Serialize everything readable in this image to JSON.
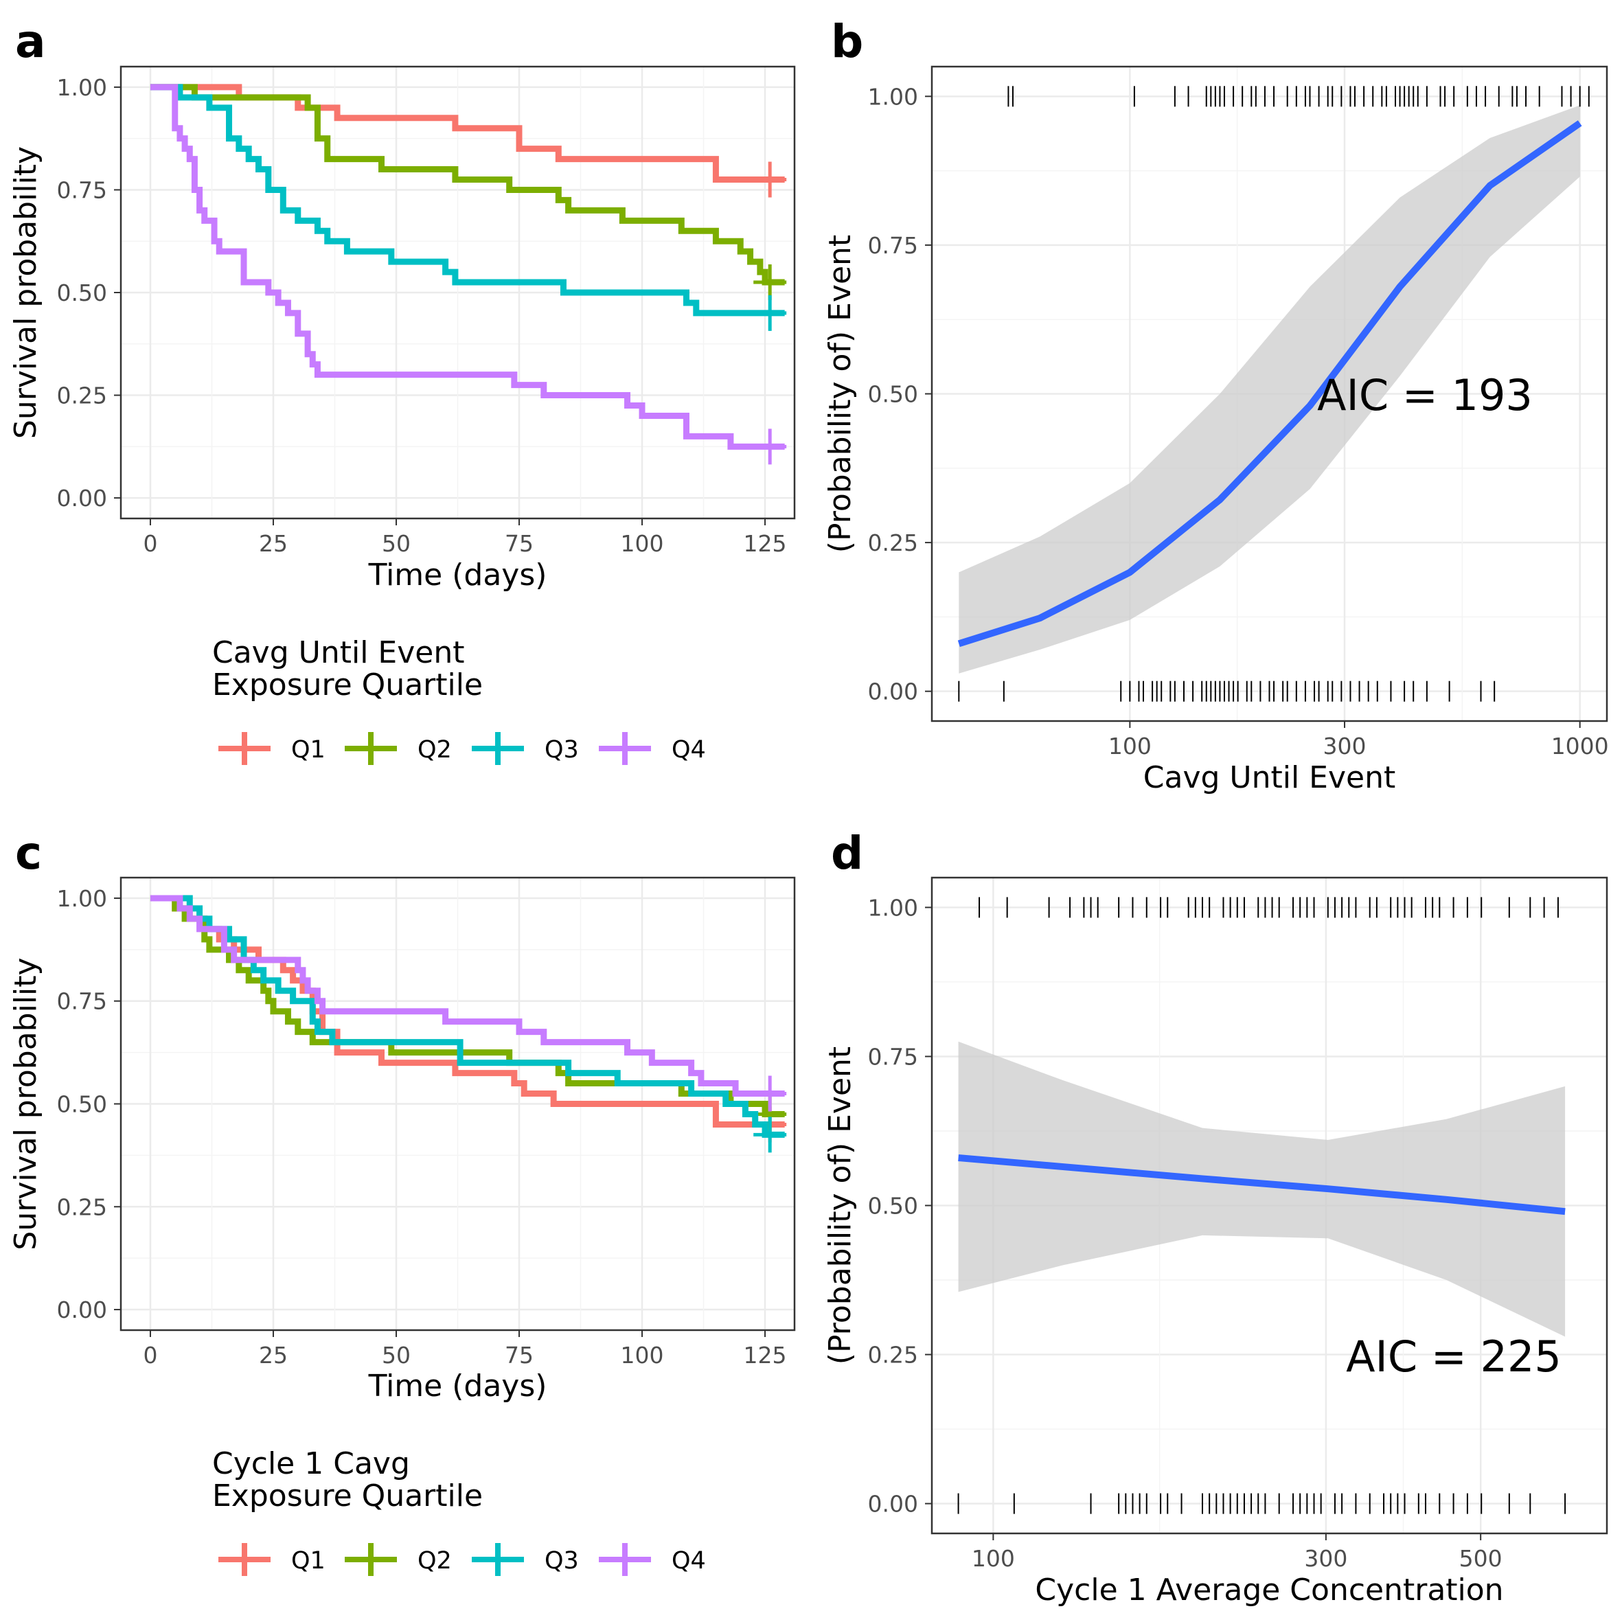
{
  "chart_data": [
    {
      "panel": "a",
      "type": "line",
      "subtype": "kaplan-meier",
      "xlabel": "Time (days)",
      "ylabel": "Survival probability",
      "xlim": [
        -6,
        131
      ],
      "ylim": [
        -0.05,
        1.05
      ],
      "xticks": [
        0,
        25,
        50,
        75,
        100,
        125
      ],
      "yticks": [
        "0.00",
        "0.25",
        "0.50",
        "0.75",
        "1.00"
      ],
      "grid": true,
      "legend": {
        "title_lines": [
          "Cavg Until Event",
          "Exposure Quartile"
        ],
        "placement": "bottom",
        "labels": [
          "Q1",
          "Q2",
          "Q3",
          "Q4"
        ]
      },
      "series": [
        {
          "name": "Q1",
          "color": "#F8766D",
          "censor": [
            126,
            0.775
          ],
          "steps": [
            [
              0,
              1
            ],
            [
              18,
              0.975
            ],
            [
              30,
              0.95
            ],
            [
              38,
              0.925
            ],
            [
              62,
              0.9
            ],
            [
              75,
              0.85
            ],
            [
              83,
              0.825
            ],
            [
              115,
              0.775
            ],
            [
              129,
              0.775
            ]
          ]
        },
        {
          "name": "Q2",
          "color": "#7CAE00",
          "censor": [
            126,
            0.525
          ],
          "steps": [
            [
              0,
              1
            ],
            [
              9,
              0.975
            ],
            [
              14,
              0.975
            ],
            [
              32,
              0.95
            ],
            [
              34,
              0.875
            ],
            [
              36,
              0.825
            ],
            [
              47,
              0.8
            ],
            [
              62,
              0.775
            ],
            [
              73,
              0.75
            ],
            [
              83,
              0.725
            ],
            [
              85,
              0.7
            ],
            [
              96,
              0.675
            ],
            [
              108,
              0.65
            ],
            [
              115,
              0.625
            ],
            [
              120,
              0.6
            ],
            [
              122,
              0.575
            ],
            [
              124,
              0.55
            ],
            [
              125,
              0.525
            ],
            [
              129,
              0.525
            ]
          ]
        },
        {
          "name": "Q3",
          "color": "#00BFC4",
          "censor": [
            126,
            0.45
          ],
          "steps": [
            [
              0,
              1
            ],
            [
              6,
              0.975
            ],
            [
              12,
              0.95
            ],
            [
              16,
              0.875
            ],
            [
              18,
              0.85
            ],
            [
              20,
              0.825
            ],
            [
              22,
              0.8
            ],
            [
              24,
              0.75
            ],
            [
              27,
              0.7
            ],
            [
              30,
              0.675
            ],
            [
              34,
              0.65
            ],
            [
              36,
              0.625
            ],
            [
              40,
              0.6
            ],
            [
              49,
              0.575
            ],
            [
              60,
              0.55
            ],
            [
              62,
              0.525
            ],
            [
              84,
              0.5
            ],
            [
              109,
              0.475
            ],
            [
              111,
              0.45
            ],
            [
              129,
              0.45
            ]
          ]
        },
        {
          "name": "Q4",
          "color": "#C77CFF",
          "censor": [
            126,
            0.125
          ],
          "steps": [
            [
              0,
              1
            ],
            [
              5,
              0.9
            ],
            [
              6,
              0.875
            ],
            [
              7,
              0.85
            ],
            [
              8,
              0.825
            ],
            [
              9,
              0.75
            ],
            [
              10,
              0.7
            ],
            [
              11,
              0.675
            ],
            [
              13,
              0.625
            ],
            [
              14,
              0.6
            ],
            [
              19,
              0.525
            ],
            [
              24,
              0.5
            ],
            [
              26,
              0.475
            ],
            [
              28,
              0.45
            ],
            [
              30,
              0.4
            ],
            [
              32,
              0.35
            ],
            [
              33,
              0.325
            ],
            [
              34,
              0.3
            ],
            [
              74,
              0.275
            ],
            [
              80,
              0.25
            ],
            [
              97,
              0.225
            ],
            [
              100,
              0.2
            ],
            [
              109,
              0.15
            ],
            [
              118,
              0.125
            ],
            [
              129,
              0.125
            ]
          ]
        }
      ]
    },
    {
      "panel": "b",
      "type": "line",
      "subtype": "logistic-regression",
      "xlabel": "Cavg Until Event",
      "ylabel": "(Probability of) Event",
      "xscale": "log10",
      "xlim_log10": [
        1.56,
        3.06
      ],
      "ylim": [
        -0.05,
        1.05
      ],
      "xticks": [
        100,
        300,
        1000
      ],
      "yticks": [
        "0.00",
        "0.25",
        "0.50",
        "0.75",
        "1.00"
      ],
      "grid": true,
      "annotation": "AIC = 193",
      "curve_color": "#3366FF",
      "band_color": "#cccccc",
      "curve": {
        "log10x": [
          1.62,
          1.8,
          2.0,
          2.2,
          2.4,
          2.6,
          2.8,
          3.0
        ],
        "y": [
          0.08,
          0.123,
          0.2,
          0.322,
          0.48,
          0.68,
          0.85,
          0.955
        ]
      },
      "band_upper": [
        0.2,
        0.26,
        0.35,
        0.5,
        0.68,
        0.83,
        0.93,
        0.985
      ],
      "band_lower": [
        0.03,
        0.07,
        0.12,
        0.21,
        0.34,
        0.53,
        0.73,
        0.865
      ],
      "rug_events": [
        1.73,
        1.74,
        2.01,
        2.1,
        2.13,
        2.17,
        2.18,
        2.19,
        2.2,
        2.21,
        2.23,
        2.25,
        2.27,
        2.28,
        2.3,
        2.32,
        2.35,
        2.37,
        2.39,
        2.4,
        2.42,
        2.44,
        2.45,
        2.47,
        2.49,
        2.5,
        2.52,
        2.54,
        2.56,
        2.57,
        2.59,
        2.61,
        2.63,
        2.64,
        2.66,
        2.69,
        2.7,
        2.72,
        2.75,
        2.77,
        2.79,
        2.82,
        2.85,
        2.86,
        2.88,
        2.91,
        2.96,
        2.98,
        3.0,
        3.02,
        2.6,
        2.62
      ],
      "rug_nonevents": [
        1.62,
        1.72,
        1.98,
        2.0,
        2.02,
        2.03,
        2.05,
        2.06,
        2.07,
        2.09,
        2.1,
        2.12,
        2.14,
        2.16,
        2.17,
        2.18,
        2.19,
        2.2,
        2.21,
        2.22,
        2.23,
        2.24,
        2.26,
        2.27,
        2.29,
        2.31,
        2.32,
        2.34,
        2.35,
        2.37,
        2.39,
        2.41,
        2.42,
        2.44,
        2.45,
        2.47,
        2.49,
        2.51,
        2.53,
        2.55,
        2.58,
        2.61,
        2.63,
        2.66,
        2.71,
        2.78,
        2.81
      ]
    },
    {
      "panel": "c",
      "type": "line",
      "subtype": "kaplan-meier",
      "xlabel": "Time (days)",
      "ylabel": "Survival probability",
      "xlim": [
        -6,
        131
      ],
      "ylim": [
        -0.05,
        1.05
      ],
      "xticks": [
        0,
        25,
        50,
        75,
        100,
        125
      ],
      "yticks": [
        "0.00",
        "0.25",
        "0.50",
        "0.75",
        "1.00"
      ],
      "grid": true,
      "legend": {
        "title_lines": [
          "Cycle 1 Cavg",
          "Exposure Quartile"
        ],
        "placement": "bottom",
        "labels": [
          "Q1",
          "Q2",
          "Q3",
          "Q4"
        ]
      },
      "series": [
        {
          "name": "Q1",
          "color": "#F8766D",
          "censor": [
            126,
            0.45
          ],
          "steps": [
            [
              0,
              1
            ],
            [
              5,
              0.975
            ],
            [
              8,
              0.95
            ],
            [
              11,
              0.925
            ],
            [
              14,
              0.9
            ],
            [
              17,
              0.875
            ],
            [
              22,
              0.85
            ],
            [
              27,
              0.825
            ],
            [
              29,
              0.8
            ],
            [
              31,
              0.775
            ],
            [
              33,
              0.725
            ],
            [
              35,
              0.675
            ],
            [
              38,
              0.625
            ],
            [
              47,
              0.6
            ],
            [
              62,
              0.575
            ],
            [
              74,
              0.55
            ],
            [
              76,
              0.525
            ],
            [
              82,
              0.5
            ],
            [
              115,
              0.45
            ],
            [
              129,
              0.45
            ]
          ]
        },
        {
          "name": "Q2",
          "color": "#7CAE00",
          "censor": [
            126,
            0.475
          ],
          "steps": [
            [
              0,
              1
            ],
            [
              5,
              0.975
            ],
            [
              7,
              0.95
            ],
            [
              11,
              0.9
            ],
            [
              12,
              0.875
            ],
            [
              16,
              0.85
            ],
            [
              18,
              0.825
            ],
            [
              20,
              0.8
            ],
            [
              23,
              0.775
            ],
            [
              24,
              0.75
            ],
            [
              25,
              0.725
            ],
            [
              28,
              0.7
            ],
            [
              30,
              0.675
            ],
            [
              33,
              0.65
            ],
            [
              49,
              0.625
            ],
            [
              73,
              0.6
            ],
            [
              83,
              0.575
            ],
            [
              85,
              0.55
            ],
            [
              108,
              0.525
            ],
            [
              118,
              0.5
            ],
            [
              125,
              0.475
            ],
            [
              129,
              0.475
            ]
          ]
        },
        {
          "name": "Q3",
          "color": "#00BFC4",
          "censor": [
            126,
            0.425
          ],
          "steps": [
            [
              0,
              1
            ],
            [
              8,
              0.975
            ],
            [
              10,
              0.95
            ],
            [
              12,
              0.925
            ],
            [
              16,
              0.9
            ],
            [
              19,
              0.85
            ],
            [
              21,
              0.825
            ],
            [
              23,
              0.8
            ],
            [
              26,
              0.775
            ],
            [
              29,
              0.75
            ],
            [
              33,
              0.7
            ],
            [
              34,
              0.675
            ],
            [
              37,
              0.65
            ],
            [
              63,
              0.6
            ],
            [
              85,
              0.575
            ],
            [
              95,
              0.55
            ],
            [
              110,
              0.525
            ],
            [
              117,
              0.5
            ],
            [
              121,
              0.475
            ],
            [
              123,
              0.45
            ],
            [
              125,
              0.425
            ],
            [
              129,
              0.425
            ]
          ]
        },
        {
          "name": "Q4",
          "color": "#C77CFF",
          "censor": [
            126,
            0.525
          ],
          "steps": [
            [
              0,
              1
            ],
            [
              6,
              0.975
            ],
            [
              8,
              0.95
            ],
            [
              10,
              0.925
            ],
            [
              15,
              0.875
            ],
            [
              17,
              0.85
            ],
            [
              30,
              0.825
            ],
            [
              31,
              0.8
            ],
            [
              32,
              0.775
            ],
            [
              34,
              0.75
            ],
            [
              35,
              0.725
            ],
            [
              60,
              0.7
            ],
            [
              75,
              0.675
            ],
            [
              80,
              0.65
            ],
            [
              97,
              0.625
            ],
            [
              102,
              0.6
            ],
            [
              110,
              0.575
            ],
            [
              112,
              0.55
            ],
            [
              119,
              0.525
            ],
            [
              129,
              0.525
            ]
          ]
        }
      ]
    },
    {
      "panel": "d",
      "type": "line",
      "subtype": "logistic-regression",
      "xlabel": "Cycle 1 Average Concentration",
      "ylabel": "(Probability of) Event",
      "xscale": "log10",
      "xlim_log10": [
        1.912,
        2.88
      ],
      "ylim": [
        -0.05,
        1.05
      ],
      "xticks": [
        100,
        300,
        500
      ],
      "yticks": [
        "0.00",
        "0.25",
        "0.50",
        "0.75",
        "1.00"
      ],
      "grid": true,
      "annotation": "AIC = 225",
      "curve_color": "#3366FF",
      "band_color": "#cccccc",
      "curve": {
        "log10x": [
          1.95,
          2.1,
          2.3,
          2.48,
          2.65,
          2.82
        ],
        "y": [
          0.58,
          0.565,
          0.545,
          0.528,
          0.51,
          0.49
        ]
      },
      "band_upper": [
        0.775,
        0.71,
        0.63,
        0.61,
        0.645,
        0.7
      ],
      "band_lower": [
        0.355,
        0.4,
        0.45,
        0.445,
        0.375,
        0.28
      ],
      "rug_events": [
        1.98,
        2.02,
        2.08,
        2.11,
        2.13,
        2.14,
        2.15,
        2.18,
        2.2,
        2.22,
        2.24,
        2.25,
        2.28,
        2.29,
        2.3,
        2.31,
        2.33,
        2.34,
        2.35,
        2.36,
        2.38,
        2.39,
        2.4,
        2.41,
        2.43,
        2.44,
        2.45,
        2.46,
        2.48,
        2.49,
        2.5,
        2.51,
        2.52,
        2.54,
        2.55,
        2.57,
        2.58,
        2.59,
        2.6,
        2.62,
        2.63,
        2.64,
        2.66,
        2.68,
        2.7,
        2.74,
        2.77,
        2.79,
        2.81
      ],
      "rug_nonevents": [
        1.95,
        2.03,
        2.14,
        2.18,
        2.19,
        2.2,
        2.21,
        2.22,
        2.24,
        2.25,
        2.27,
        2.3,
        2.31,
        2.32,
        2.33,
        2.34,
        2.35,
        2.36,
        2.37,
        2.38,
        2.39,
        2.41,
        2.43,
        2.44,
        2.45,
        2.46,
        2.47,
        2.49,
        2.5,
        2.52,
        2.54,
        2.56,
        2.57,
        2.58,
        2.59,
        2.61,
        2.62,
        2.64,
        2.66,
        2.68,
        2.7,
        2.74,
        2.77,
        2.82
      ]
    }
  ],
  "panel_letters": [
    "a",
    "b",
    "c",
    "d"
  ]
}
